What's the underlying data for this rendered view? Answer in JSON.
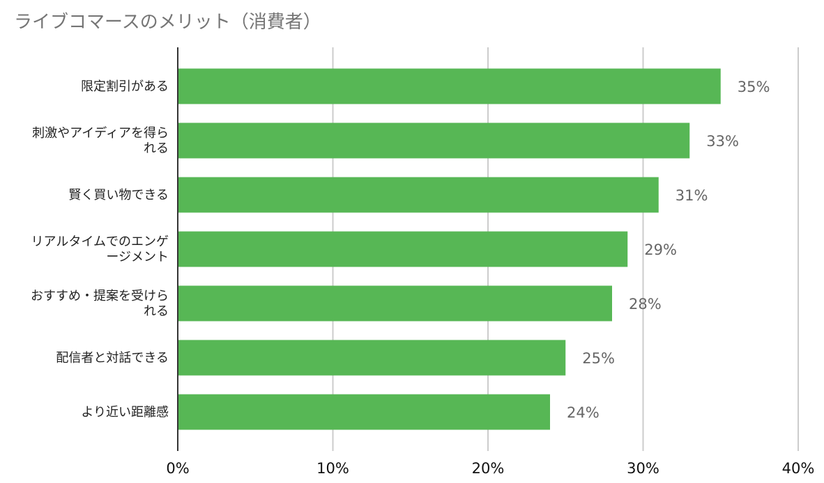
{
  "chart_data": {
    "type": "bar",
    "orientation": "horizontal",
    "title": "ライブコマースのメリット（消費者）",
    "xlabel": "",
    "ylabel": "",
    "categories": [
      [
        "限定割引がある"
      ],
      [
        "刺激やアイディアを得ら",
        "れる"
      ],
      [
        "賢く買い物できる"
      ],
      [
        "リアルタイムでのエンゲ",
        "ージメント"
      ],
      [
        "おすすめ・提案を受けら",
        "れる"
      ],
      [
        "配信者と対話できる"
      ],
      [
        "より近い距離感"
      ]
    ],
    "values": [
      35,
      33,
      31,
      29,
      28,
      25,
      24
    ],
    "value_labels": [
      "35%",
      "33%",
      "31%",
      "29%",
      "28%",
      "25%",
      "24%"
    ],
    "xlim": [
      0,
      40
    ],
    "xticks": [
      0,
      10,
      20,
      30,
      40
    ],
    "xtick_labels": [
      "0%",
      "10%",
      "20%",
      "30%",
      "40%"
    ],
    "grid": true,
    "legend": "none",
    "bar_color": "#57b755"
  }
}
